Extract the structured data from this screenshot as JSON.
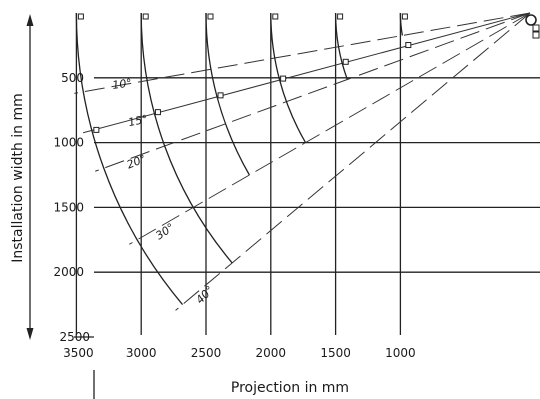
{
  "axes": {
    "y_title": "Installation width in mm",
    "x_title": "Projection in mm",
    "y_ticks": [
      {
        "value": 500,
        "label": "500"
      },
      {
        "value": 1000,
        "label": "1000"
      },
      {
        "value": 1500,
        "label": "1500"
      },
      {
        "value": 2000,
        "label": "2000"
      },
      {
        "value": 2500,
        "label": "2500"
      }
    ],
    "x_ticks": [
      {
        "value": 3500,
        "label": "3500"
      },
      {
        "value": 3000,
        "label": "3000"
      },
      {
        "value": 2500,
        "label": "2500"
      },
      {
        "value": 2000,
        "label": "2000"
      },
      {
        "value": 1500,
        "label": "1500"
      },
      {
        "value": 1000,
        "label": "1000"
      }
    ]
  },
  "angles": [
    {
      "deg": 10,
      "label": "10°",
      "style": "dashed"
    },
    {
      "deg": 15,
      "label": "15°",
      "style": "solid"
    },
    {
      "deg": 20,
      "label": "20°",
      "style": "dashed"
    },
    {
      "deg": 30,
      "label": "30°",
      "style": "dashed"
    },
    {
      "deg": 40,
      "label": "40°",
      "style": "dashed"
    }
  ],
  "arcs": [
    {
      "radius": 3500,
      "max_angle": 40
    },
    {
      "radius": 3000,
      "max_angle": 40
    },
    {
      "radius": 2500,
      "max_angle": 30
    },
    {
      "radius": 2000,
      "max_angle": 30
    },
    {
      "radius": 1500,
      "max_angle": 20
    },
    {
      "radius": 1000,
      "max_angle": 10
    }
  ],
  "colors": {
    "ink": "#222222",
    "background": "#ffffff"
  }
}
